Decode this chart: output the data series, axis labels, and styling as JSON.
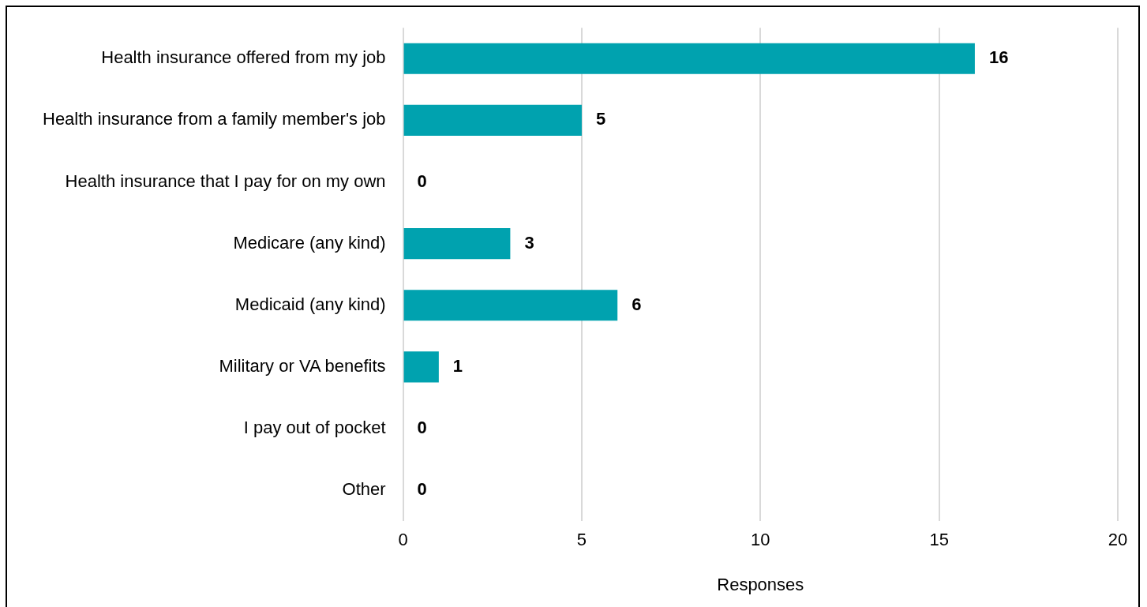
{
  "chart_data": {
    "type": "bar",
    "orientation": "horizontal",
    "xlabel": "Responses",
    "categories": [
      "Health insurance offered from my job",
      "Health insurance from a family member's job",
      "Health insurance that I pay for on my own",
      "Medicare (any kind)",
      "Medicaid (any kind)",
      "Military or VA benefits",
      "I pay out of pocket",
      "Other"
    ],
    "values": [
      16,
      5,
      0,
      3,
      6,
      1,
      0,
      0
    ],
    "color": "#00a2af",
    "xlim": [
      0,
      20
    ],
    "xticks": [
      0,
      5,
      10,
      15,
      20
    ],
    "grid": "x",
    "legend": false,
    "data_labels": true
  }
}
